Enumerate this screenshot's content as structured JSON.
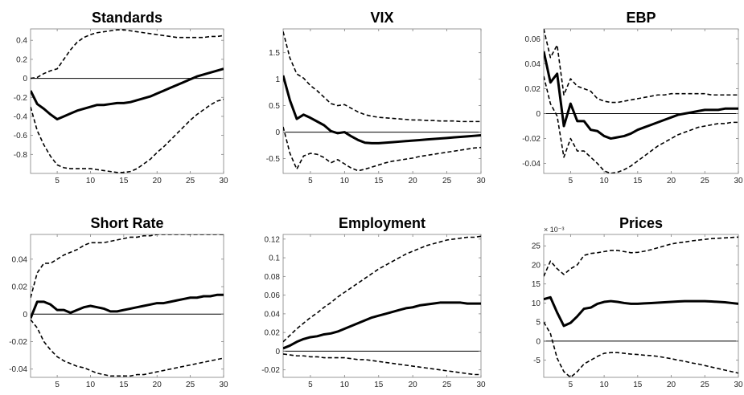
{
  "chart_data": [
    {
      "type": "line",
      "title": "Standards",
      "xlim": [
        1,
        30
      ],
      "ylim": [
        -1.0,
        0.52
      ],
      "xticks": [
        "5",
        "10",
        "15",
        "20",
        "25",
        "30"
      ],
      "yticks": [
        -0.8,
        -0.6,
        -0.4,
        -0.2,
        0,
        0.2,
        0.4
      ],
      "ytick_labels": [
        "-0.8",
        "-0.6",
        "-0.4",
        "-0.2",
        "0",
        "0.2",
        "0.4"
      ],
      "x": [
        1,
        2,
        3,
        4,
        5,
        6,
        7,
        8,
        9,
        10,
        11,
        12,
        13,
        14,
        15,
        16,
        17,
        18,
        19,
        20,
        21,
        22,
        23,
        24,
        25,
        26,
        27,
        28,
        29,
        30
      ],
      "series": [
        {
          "role": "upper",
          "style": "dashed",
          "values": [
            0.0,
            0.01,
            0.05,
            0.08,
            0.1,
            0.2,
            0.3,
            0.38,
            0.43,
            0.46,
            0.48,
            0.49,
            0.5,
            0.51,
            0.51,
            0.5,
            0.49,
            0.48,
            0.47,
            0.46,
            0.45,
            0.44,
            0.43,
            0.43,
            0.43,
            0.43,
            0.43,
            0.44,
            0.44,
            0.45
          ]
        },
        {
          "role": "irf",
          "style": "solid",
          "values": [
            -0.13,
            -0.27,
            -0.32,
            -0.38,
            -0.43,
            -0.4,
            -0.37,
            -0.34,
            -0.32,
            -0.3,
            -0.28,
            -0.28,
            -0.27,
            -0.26,
            -0.26,
            -0.25,
            -0.23,
            -0.21,
            -0.19,
            -0.16,
            -0.13,
            -0.1,
            -0.07,
            -0.04,
            -0.01,
            0.02,
            0.04,
            0.06,
            0.08,
            0.1
          ]
        },
        {
          "role": "lower",
          "style": "dashed",
          "values": [
            -0.3,
            -0.55,
            -0.7,
            -0.82,
            -0.91,
            -0.94,
            -0.95,
            -0.95,
            -0.95,
            -0.95,
            -0.96,
            -0.97,
            -0.98,
            -0.99,
            -0.99,
            -0.98,
            -0.95,
            -0.9,
            -0.85,
            -0.78,
            -0.72,
            -0.65,
            -0.58,
            -0.51,
            -0.44,
            -0.38,
            -0.33,
            -0.28,
            -0.24,
            -0.22
          ]
        }
      ]
    },
    {
      "type": "line",
      "title": "VIX",
      "xlim": [
        1,
        30
      ],
      "ylim": [
        -0.78,
        1.95
      ],
      "xticks": [
        "5",
        "10",
        "15",
        "20",
        "25",
        "30"
      ],
      "yticks": [
        -0.5,
        0,
        0.5,
        1,
        1.5
      ],
      "ytick_labels": [
        "-0.5",
        "0",
        "0.5",
        "1",
        "1.5"
      ],
      "x": [
        1,
        2,
        3,
        4,
        5,
        6,
        7,
        8,
        9,
        10,
        11,
        12,
        13,
        14,
        15,
        16,
        17,
        18,
        19,
        20,
        21,
        22,
        23,
        24,
        25,
        26,
        27,
        28,
        29,
        30
      ],
      "series": [
        {
          "role": "upper",
          "style": "dashed",
          "values": [
            1.9,
            1.4,
            1.1,
            1.02,
            0.88,
            0.78,
            0.66,
            0.54,
            0.5,
            0.52,
            0.45,
            0.38,
            0.33,
            0.3,
            0.28,
            0.27,
            0.26,
            0.25,
            0.24,
            0.23,
            0.23,
            0.22,
            0.22,
            0.21,
            0.21,
            0.21,
            0.2,
            0.2,
            0.2,
            0.2
          ]
        },
        {
          "role": "irf",
          "style": "solid",
          "values": [
            1.07,
            0.6,
            0.25,
            0.33,
            0.27,
            0.2,
            0.13,
            0.02,
            -0.02,
            0.0,
            -0.08,
            -0.15,
            -0.2,
            -0.21,
            -0.21,
            -0.2,
            -0.19,
            -0.18,
            -0.17,
            -0.16,
            -0.15,
            -0.14,
            -0.13,
            -0.12,
            -0.11,
            -0.1,
            -0.09,
            -0.08,
            -0.07,
            -0.06
          ]
        },
        {
          "role": "lower",
          "style": "dashed",
          "values": [
            0.1,
            -0.4,
            -0.7,
            -0.45,
            -0.4,
            -0.42,
            -0.48,
            -0.58,
            -0.52,
            -0.6,
            -0.68,
            -0.73,
            -0.7,
            -0.66,
            -0.62,
            -0.58,
            -0.55,
            -0.53,
            -0.51,
            -0.49,
            -0.46,
            -0.44,
            -0.42,
            -0.4,
            -0.38,
            -0.36,
            -0.34,
            -0.32,
            -0.3,
            -0.29
          ]
        }
      ]
    },
    {
      "type": "line",
      "title": "EBP",
      "xlim": [
        1,
        30
      ],
      "ylim": [
        -0.048,
        0.068
      ],
      "xticks": [
        "5",
        "10",
        "15",
        "20",
        "25",
        "30"
      ],
      "yticks": [
        -0.04,
        -0.02,
        0,
        0.02,
        0.04,
        0.06
      ],
      "ytick_labels": [
        "-0.04",
        "-0.02",
        "0",
        "0.02",
        "0.04",
        "0.06"
      ],
      "x": [
        1,
        2,
        3,
        4,
        5,
        6,
        7,
        8,
        9,
        10,
        11,
        12,
        13,
        14,
        15,
        16,
        17,
        18,
        19,
        20,
        21,
        22,
        23,
        24,
        25,
        26,
        27,
        28,
        29,
        30
      ],
      "series": [
        {
          "role": "upper",
          "style": "dashed",
          "values": [
            0.068,
            0.045,
            0.055,
            0.015,
            0.028,
            0.022,
            0.02,
            0.018,
            0.012,
            0.01,
            0.009,
            0.009,
            0.01,
            0.011,
            0.012,
            0.013,
            0.014,
            0.015,
            0.015,
            0.016,
            0.016,
            0.016,
            0.016,
            0.016,
            0.016,
            0.015,
            0.015,
            0.015,
            0.015,
            0.015
          ]
        },
        {
          "role": "irf",
          "style": "solid",
          "values": [
            0.05,
            0.025,
            0.032,
            -0.01,
            0.008,
            -0.006,
            -0.006,
            -0.013,
            -0.014,
            -0.018,
            -0.02,
            -0.019,
            -0.018,
            -0.016,
            -0.013,
            -0.011,
            -0.009,
            -0.007,
            -0.005,
            -0.003,
            -0.001,
            0.0,
            0.001,
            0.002,
            0.003,
            0.003,
            0.003,
            0.004,
            0.004,
            0.004
          ]
        },
        {
          "role": "lower",
          "style": "dashed",
          "values": [
            0.03,
            0.008,
            -0.002,
            -0.035,
            -0.02,
            -0.03,
            -0.03,
            -0.035,
            -0.04,
            -0.046,
            -0.048,
            -0.047,
            -0.045,
            -0.042,
            -0.038,
            -0.034,
            -0.03,
            -0.026,
            -0.023,
            -0.02,
            -0.017,
            -0.015,
            -0.013,
            -0.011,
            -0.01,
            -0.009,
            -0.008,
            -0.008,
            -0.007,
            -0.007
          ]
        }
      ]
    },
    {
      "type": "line",
      "title": "Short Rate",
      "xlim": [
        1,
        30
      ],
      "ylim": [
        -0.046,
        0.058
      ],
      "xticks": [
        "5",
        "10",
        "15",
        "20",
        "25",
        "30"
      ],
      "yticks": [
        -0.04,
        -0.02,
        0,
        0.02,
        0.04
      ],
      "ytick_labels": [
        "-0.04",
        "-0.02",
        "0",
        "0.02",
        "0.04"
      ],
      "x": [
        1,
        2,
        3,
        4,
        5,
        6,
        7,
        8,
        9,
        10,
        11,
        12,
        13,
        14,
        15,
        16,
        17,
        18,
        19,
        20,
        21,
        22,
        23,
        24,
        25,
        26,
        27,
        28,
        29,
        30
      ],
      "series": [
        {
          "role": "upper",
          "style": "dashed",
          "values": [
            0.012,
            0.03,
            0.037,
            0.037,
            0.04,
            0.043,
            0.045,
            0.047,
            0.05,
            0.052,
            0.052,
            0.052,
            0.053,
            0.054,
            0.055,
            0.056,
            0.056,
            0.057,
            0.057,
            0.058,
            0.058,
            0.058,
            0.058,
            0.058,
            0.058,
            0.058,
            0.058,
            0.058,
            0.058,
            0.058
          ]
        },
        {
          "role": "irf",
          "style": "solid",
          "values": [
            -0.003,
            0.009,
            0.009,
            0.007,
            0.003,
            0.003,
            0.001,
            0.003,
            0.005,
            0.006,
            0.005,
            0.004,
            0.002,
            0.002,
            0.003,
            0.004,
            0.005,
            0.006,
            0.007,
            0.008,
            0.008,
            0.009,
            0.01,
            0.011,
            0.012,
            0.012,
            0.013,
            0.013,
            0.014,
            0.014
          ]
        },
        {
          "role": "lower",
          "style": "dashed",
          "values": [
            -0.004,
            -0.01,
            -0.02,
            -0.026,
            -0.031,
            -0.034,
            -0.036,
            -0.038,
            -0.039,
            -0.041,
            -0.043,
            -0.044,
            -0.045,
            -0.045,
            -0.045,
            -0.045,
            -0.044,
            -0.044,
            -0.043,
            -0.042,
            -0.041,
            -0.04,
            -0.039,
            -0.038,
            -0.037,
            -0.036,
            -0.035,
            -0.034,
            -0.033,
            -0.032
          ]
        }
      ]
    },
    {
      "type": "line",
      "title": "Employment",
      "xlim": [
        1,
        30
      ],
      "ylim": [
        -0.028,
        0.125
      ],
      "xticks": [
        "5",
        "10",
        "15",
        "20",
        "25",
        "30"
      ],
      "yticks": [
        -0.02,
        0,
        0.02,
        0.04,
        0.06,
        0.08,
        0.1,
        0.12
      ],
      "ytick_labels": [
        "-0.02",
        "0",
        "0.02",
        "0.04",
        "0.06",
        "0.08",
        "0.1",
        "0.12"
      ],
      "x": [
        1,
        2,
        3,
        4,
        5,
        6,
        7,
        8,
        9,
        10,
        11,
        12,
        13,
        14,
        15,
        16,
        17,
        18,
        19,
        20,
        21,
        22,
        23,
        24,
        25,
        26,
        27,
        28,
        29,
        30
      ],
      "series": [
        {
          "role": "upper",
          "style": "dashed",
          "values": [
            0.01,
            0.017,
            0.024,
            0.03,
            0.036,
            0.041,
            0.047,
            0.052,
            0.058,
            0.063,
            0.068,
            0.073,
            0.078,
            0.083,
            0.088,
            0.092,
            0.096,
            0.1,
            0.104,
            0.107,
            0.11,
            0.113,
            0.115,
            0.117,
            0.119,
            0.12,
            0.121,
            0.122,
            0.122,
            0.123
          ]
        },
        {
          "role": "irf",
          "style": "solid",
          "values": [
            0.003,
            0.006,
            0.01,
            0.013,
            0.015,
            0.016,
            0.018,
            0.019,
            0.021,
            0.024,
            0.027,
            0.03,
            0.033,
            0.036,
            0.038,
            0.04,
            0.042,
            0.044,
            0.046,
            0.047,
            0.049,
            0.05,
            0.051,
            0.052,
            0.052,
            0.052,
            0.052,
            0.051,
            0.051,
            0.051
          ]
        },
        {
          "role": "lower",
          "style": "dashed",
          "values": [
            -0.003,
            -0.004,
            -0.005,
            -0.005,
            -0.006,
            -0.006,
            -0.007,
            -0.007,
            -0.007,
            -0.007,
            -0.008,
            -0.009,
            -0.009,
            -0.01,
            -0.011,
            -0.012,
            -0.013,
            -0.014,
            -0.015,
            -0.016,
            -0.017,
            -0.018,
            -0.019,
            -0.02,
            -0.021,
            -0.022,
            -0.023,
            -0.024,
            -0.025,
            -0.025
          ]
        }
      ]
    },
    {
      "type": "line",
      "title": "Prices",
      "xlim": [
        1,
        30
      ],
      "ylim": [
        -9.5,
        28
      ],
      "exponent_label": "× 10⁻³",
      "xticks": [
        "5",
        "10",
        "15",
        "20",
        "25",
        "30"
      ],
      "yticks": [
        -5,
        0,
        5,
        10,
        15,
        20,
        25
      ],
      "ytick_labels": [
        "-5",
        "0",
        "5",
        "10",
        "15",
        "20",
        "25"
      ],
      "x": [
        1,
        2,
        3,
        4,
        5,
        6,
        7,
        8,
        9,
        10,
        11,
        12,
        13,
        14,
        15,
        16,
        17,
        18,
        19,
        20,
        21,
        22,
        23,
        24,
        25,
        26,
        27,
        28,
        29,
        30
      ],
      "series": [
        {
          "role": "upper",
          "style": "dashed",
          "values": [
            17.0,
            21.0,
            19.0,
            17.5,
            19.0,
            20.0,
            22.5,
            23.0,
            23.2,
            23.5,
            23.8,
            23.8,
            23.5,
            23.2,
            23.3,
            23.6,
            24.0,
            24.5,
            25.0,
            25.5,
            25.8,
            26.0,
            26.3,
            26.5,
            26.7,
            26.9,
            27.0,
            27.1,
            27.2,
            27.3
          ]
        },
        {
          "role": "irf",
          "style": "solid",
          "values": [
            11.0,
            11.5,
            7.5,
            4.0,
            4.8,
            6.5,
            8.5,
            8.8,
            9.8,
            10.3,
            10.5,
            10.3,
            10.0,
            9.8,
            9.8,
            9.9,
            10.0,
            10.1,
            10.2,
            10.3,
            10.4,
            10.5,
            10.5,
            10.5,
            10.5,
            10.4,
            10.3,
            10.2,
            10.0,
            9.8
          ]
        },
        {
          "role": "lower",
          "style": "dashed",
          "values": [
            5.0,
            2.0,
            -4.5,
            -8.0,
            -9.5,
            -8.0,
            -6.0,
            -5.0,
            -4.0,
            -3.2,
            -3.0,
            -3.0,
            -3.2,
            -3.4,
            -3.5,
            -3.7,
            -3.8,
            -4.0,
            -4.3,
            -4.6,
            -5.0,
            -5.3,
            -5.7,
            -6.0,
            -6.4,
            -6.8,
            -7.2,
            -7.6,
            -8.0,
            -8.4
          ]
        }
      ]
    }
  ]
}
